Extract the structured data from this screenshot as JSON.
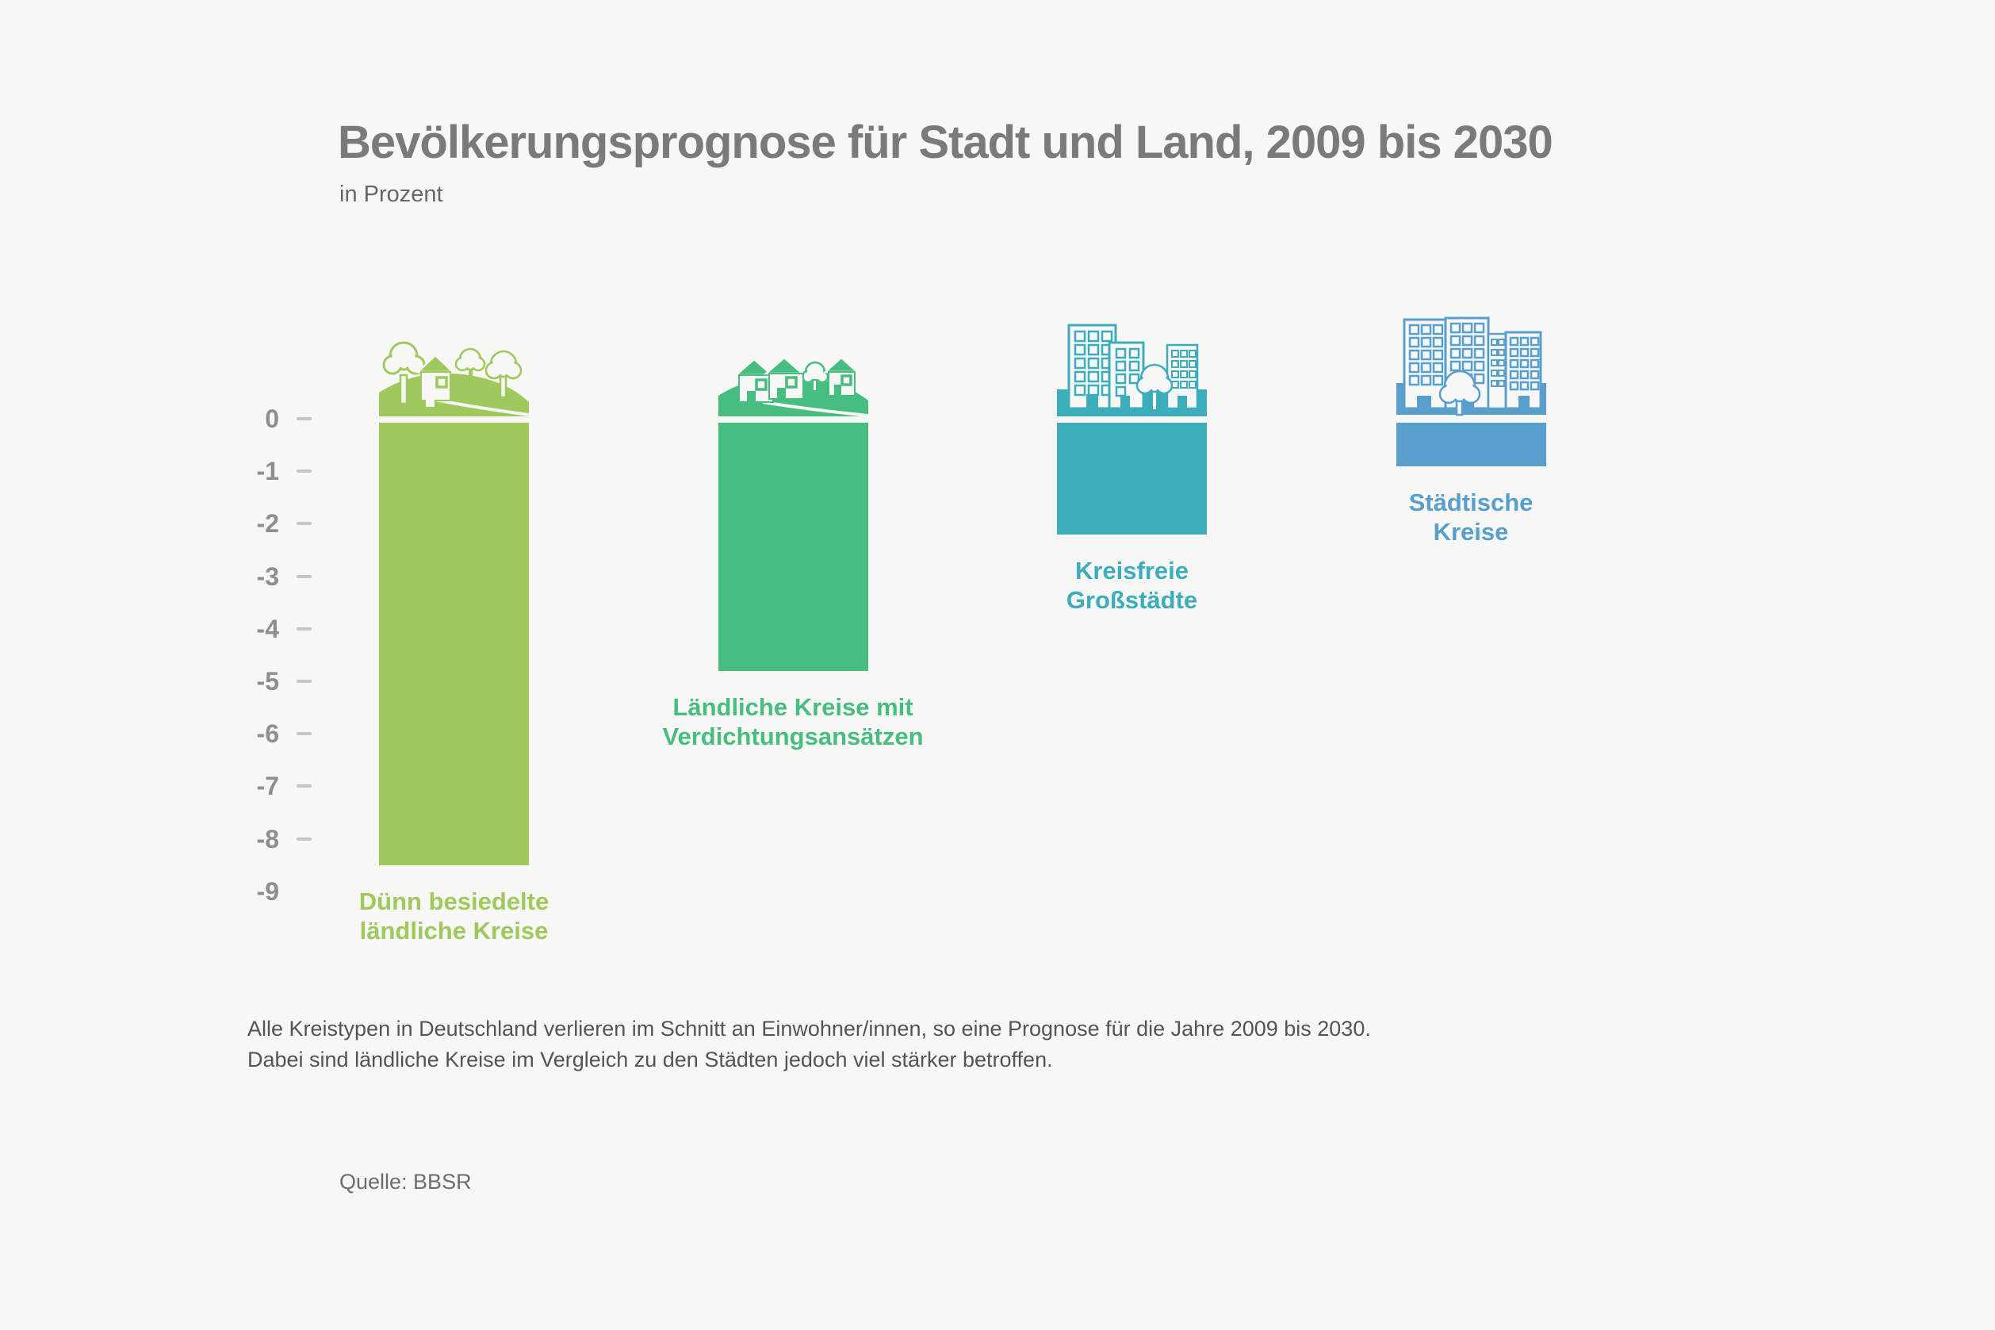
{
  "page": {
    "background": "#f7f7f5"
  },
  "header": {
    "title": "Bevölkerungsprognose für Stadt und Land, 2009 bis 2030",
    "subtitle": "in Prozent"
  },
  "y_axis": {
    "ticks": [
      {
        "label": "0",
        "dash": true
      },
      {
        "label": "-1",
        "dash": true
      },
      {
        "label": "-2",
        "dash": true
      },
      {
        "label": "-3",
        "dash": true
      },
      {
        "label": "-4",
        "dash": true
      },
      {
        "label": "-5",
        "dash": true
      },
      {
        "label": "-6",
        "dash": true
      },
      {
        "label": "-7",
        "dash": true
      },
      {
        "label": "-8",
        "dash": true
      },
      {
        "label": "-9",
        "dash": false
      }
    ]
  },
  "chart_data": {
    "type": "bar",
    "title": "Bevölkerungsprognose für Stadt und Land, 2009 bis 2030",
    "unit_label": "in Prozent",
    "ylim": [
      -9,
      0
    ],
    "grid": false,
    "series": [
      {
        "category_lines": [
          "Dünn besiedelte",
          "ländliche Kreise"
        ],
        "value": -8.5,
        "color": "#9fc85d",
        "icon": "rural-sparse-icon"
      },
      {
        "category_lines": [
          "Ländliche Kreise mit",
          "Verdichtungsansätzen"
        ],
        "value": -4.8,
        "color": "#48bd80",
        "icon": "rural-village-icon"
      },
      {
        "category_lines": [
          "Kreisfreie",
          "Großstädte"
        ],
        "value": -2.2,
        "color": "#3cadbb",
        "icon": "city-icon"
      },
      {
        "category_lines": [
          "Städtische",
          "Kreise"
        ],
        "value": -0.9,
        "color": "#589fcd",
        "icon": "big-city-icon"
      }
    ]
  },
  "footnote": {
    "lines": [
      "Alle Kreistypen in Deutschland verlieren im Schnitt an Einwohner/innen, so eine Prognose für die Jahre 2009 bis 2030.",
      "Dabei sind ländliche Kreise im Vergleich zu den Städten jedoch viel stärker betroffen."
    ]
  },
  "source": {
    "label": "Quelle: BBSR"
  }
}
